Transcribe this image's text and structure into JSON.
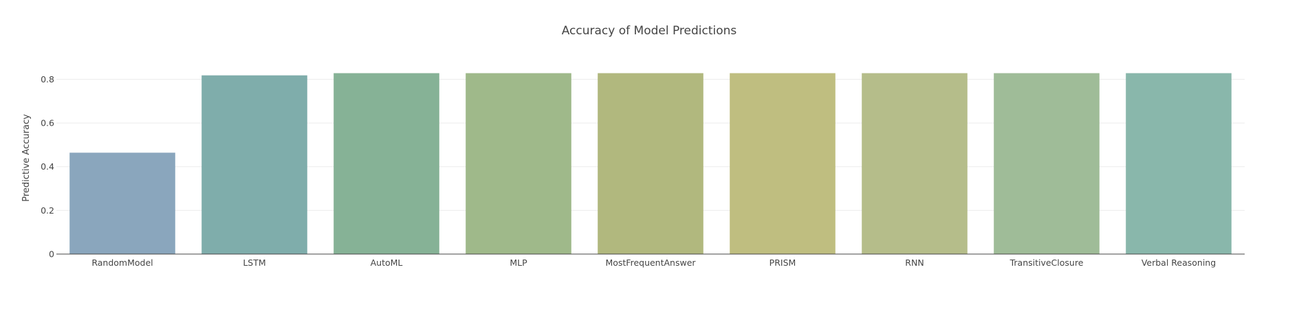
{
  "chart_data": {
    "type": "bar",
    "title": "Accuracy of Model Predictions",
    "xlabel": "",
    "ylabel": "Predictive Accuracy",
    "ylim": [
      0,
      0.88
    ],
    "yticks": [
      0,
      0.2,
      0.4,
      0.6,
      0.8
    ],
    "ytick_labels": [
      "0",
      "0.2",
      "0.4",
      "0.6",
      "0.8"
    ],
    "grid": true,
    "legend": "none",
    "categories": [
      "RandomModel",
      "LSTM",
      "AutoML",
      "MLP",
      "MostFrequentAnswer",
      "PRISM",
      "RNN",
      "TransitiveClosure",
      "Verbal Reasoning"
    ],
    "values": [
      0.464,
      0.818,
      0.828,
      0.828,
      0.828,
      0.828,
      0.828,
      0.828,
      0.828
    ],
    "colors": [
      "#8aa6bd",
      "#7fadab",
      "#86b296",
      "#9fb98a",
      "#b1b87e",
      "#bfbe80",
      "#b5bd8a",
      "#9fbc98",
      "#89b7ab"
    ]
  }
}
